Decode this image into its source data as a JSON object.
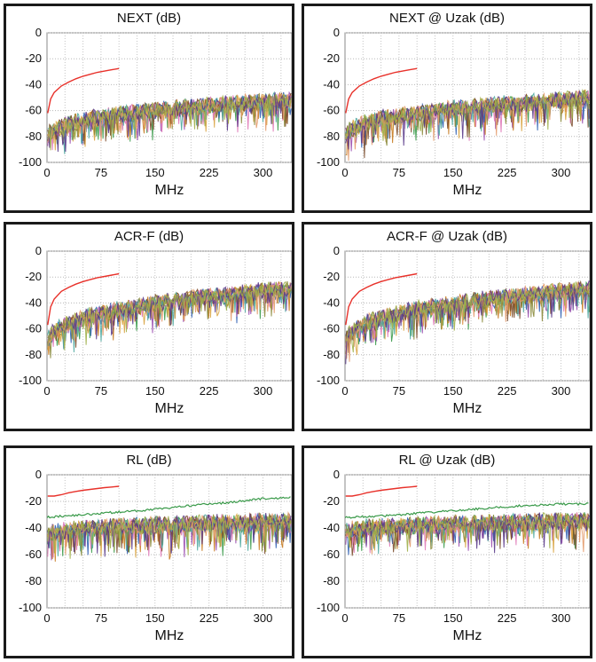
{
  "chart_data": [
    {
      "type": "line",
      "title": "NEXT (dB)",
      "xlabel": "MHz",
      "ylabel": "",
      "xlim": [
        0,
        340
      ],
      "ylim": [
        -100,
        0
      ],
      "xticks": [
        0,
        75,
        150,
        225,
        300
      ],
      "yticks": [
        0,
        -20,
        -40,
        -60,
        -80,
        -100
      ],
      "grid": true,
      "limit_line": {
        "color": "#e8312a",
        "x": [
          1,
          5,
          10,
          20,
          30,
          40,
          50,
          60,
          70,
          80,
          90,
          100
        ],
        "y": [
          -62,
          -51,
          -46,
          -41,
          -38,
          -35.5,
          -33.5,
          -32,
          -30.5,
          -29.5,
          -28.5,
          -27.5
        ]
      },
      "series_band": {
        "start_low": -100,
        "start_high": -68,
        "end_low": -62,
        "end_high": -42,
        "spread": 18
      }
    },
    {
      "type": "line",
      "title": "NEXT @ Uzak (dB)",
      "xlabel": "MHz",
      "ylabel": "",
      "xlim": [
        0,
        340
      ],
      "ylim": [
        -100,
        0
      ],
      "xticks": [
        0,
        75,
        150,
        225,
        300
      ],
      "yticks": [
        0,
        -20,
        -40,
        -60,
        -80,
        -100
      ],
      "grid": true,
      "limit_line": {
        "color": "#e8312a",
        "x": [
          1,
          5,
          10,
          20,
          30,
          40,
          50,
          60,
          70,
          80,
          90,
          100
        ],
        "y": [
          -62,
          -51,
          -46,
          -41,
          -38,
          -35.5,
          -33.5,
          -32,
          -30.5,
          -29.5,
          -28.5,
          -27.5
        ]
      },
      "series_band": {
        "start_low": -100,
        "start_high": -68,
        "end_low": -62,
        "end_high": -40,
        "spread": 20
      }
    },
    {
      "type": "line",
      "title": "ACR-F (dB)",
      "xlabel": "MHz",
      "ylabel": "",
      "xlim": [
        0,
        340
      ],
      "ylim": [
        -100,
        0
      ],
      "xticks": [
        0,
        75,
        150,
        225,
        300
      ],
      "yticks": [
        0,
        -20,
        -40,
        -60,
        -80,
        -100
      ],
      "grid": true,
      "limit_line": {
        "color": "#e8312a",
        "x": [
          1,
          5,
          10,
          20,
          30,
          40,
          50,
          60,
          70,
          80,
          90,
          100
        ],
        "y": [
          -57,
          -43,
          -37,
          -31,
          -28,
          -25.5,
          -23.5,
          -22,
          -20.5,
          -19.5,
          -18.5,
          -17.5
        ]
      },
      "series_band": {
        "start_low": -92,
        "start_high": -62,
        "end_low": -45,
        "end_high": -15,
        "spread": 18
      }
    },
    {
      "type": "line",
      "title": "ACR-F @ Uzak (dB)",
      "xlabel": "MHz",
      "ylabel": "",
      "xlim": [
        0,
        340
      ],
      "ylim": [
        -100,
        0
      ],
      "xticks": [
        0,
        75,
        150,
        225,
        300
      ],
      "yticks": [
        0,
        -20,
        -40,
        -60,
        -80,
        -100
      ],
      "grid": true,
      "limit_line": {
        "color": "#e8312a",
        "x": [
          1,
          5,
          10,
          20,
          30,
          40,
          50,
          60,
          70,
          80,
          90,
          100
        ],
        "y": [
          -57,
          -43,
          -37,
          -31,
          -28,
          -25.5,
          -23.5,
          -22,
          -20.5,
          -19.5,
          -18.5,
          -17.5
        ]
      },
      "series_band": {
        "start_low": -92,
        "start_high": -62,
        "end_low": -45,
        "end_high": -17,
        "spread": 18
      }
    },
    {
      "type": "line",
      "title": "RL (dB)",
      "xlabel": "MHz",
      "ylabel": "",
      "xlim": [
        0,
        340
      ],
      "ylim": [
        -100,
        0
      ],
      "xticks": [
        0,
        75,
        150,
        225,
        300
      ],
      "yticks": [
        0,
        -20,
        -40,
        -60,
        -80,
        -100
      ],
      "grid": true,
      "limit_line": {
        "color": "#e8312a",
        "x": [
          1,
          10,
          20,
          30,
          40,
          50,
          60,
          70,
          80,
          90,
          100
        ],
        "y": [
          -16,
          -16,
          -15,
          -13.5,
          -12.5,
          -11.7,
          -11,
          -10.3,
          -9.7,
          -9.2,
          -8.7
        ]
      },
      "series_band": {
        "start_low": -72,
        "start_high": -28,
        "end_low": -45,
        "end_high": -28,
        "spread": 20
      },
      "top_series": {
        "color": "#3a9a4a",
        "x": [
          0,
          50,
          100,
          150,
          200,
          250,
          300,
          340
        ],
        "y": [
          -32,
          -30,
          -28,
          -26,
          -23,
          -21,
          -18,
          -17
        ]
      }
    },
    {
      "type": "line",
      "title": "RL @ Uzak (dB)",
      "xlabel": "MHz",
      "ylabel": "",
      "xlim": [
        0,
        340
      ],
      "ylim": [
        -100,
        0
      ],
      "xticks": [
        0,
        75,
        150,
        225,
        300
      ],
      "yticks": [
        0,
        -20,
        -40,
        -60,
        -80,
        -100
      ],
      "grid": true,
      "limit_line": {
        "color": "#e8312a",
        "x": [
          1,
          10,
          20,
          30,
          40,
          50,
          60,
          70,
          80,
          90,
          100
        ],
        "y": [
          -16,
          -16,
          -15,
          -13.5,
          -12.5,
          -11.7,
          -11,
          -10.3,
          -9.7,
          -9.2,
          -8.7
        ]
      },
      "series_band": {
        "start_low": -66,
        "start_high": -30,
        "end_low": -45,
        "end_high": -28,
        "spread": 18
      },
      "top_series": {
        "color": "#3a9a4a",
        "x": [
          0,
          50,
          100,
          150,
          200,
          250,
          300,
          340
        ],
        "y": [
          -32,
          -31,
          -29,
          -27,
          -25,
          -23,
          -22,
          -22
        ]
      }
    }
  ],
  "series_colors": [
    "#3a9a4a",
    "#9b4fb0",
    "#c77a1f",
    "#2f5fb3",
    "#d9a441",
    "#e07ab8",
    "#7a4a2a",
    "#4fa8a0",
    "#8a8a3a",
    "#e39a6a",
    "#5a3a8a",
    "#a0b04a"
  ]
}
